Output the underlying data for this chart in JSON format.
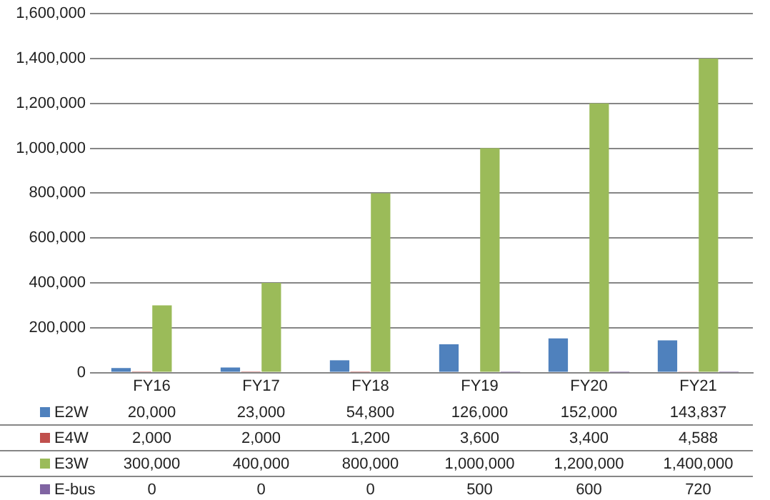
{
  "chart_data": {
    "type": "bar",
    "categories": [
      "FY16",
      "FY17",
      "FY18",
      "FY19",
      "FY20",
      "FY21"
    ],
    "series": [
      {
        "name": "E2W",
        "color": "#4f81bd",
        "values": [
          20000,
          23000,
          54800,
          126000,
          152000,
          143837
        ],
        "value_labels": [
          "20,000",
          "23,000",
          "54,800",
          "126,000",
          "152,000",
          "143,837"
        ]
      },
      {
        "name": "E4W",
        "color": "#c0504d",
        "values": [
          2000,
          2000,
          1200,
          3600,
          3400,
          4588
        ],
        "value_labels": [
          "2,000",
          "2,000",
          "1,200",
          "3,600",
          "3,400",
          "4,588"
        ]
      },
      {
        "name": "E3W",
        "color": "#9bbb59",
        "values": [
          300000,
          400000,
          800000,
          1000000,
          1200000,
          1400000
        ],
        "value_labels": [
          "300,000",
          "400,000",
          "800,000",
          "1,000,000",
          "1,200,000",
          "1,400,000"
        ]
      },
      {
        "name": "E-bus",
        "color": "#8064a2",
        "values": [
          0,
          0,
          0,
          500,
          600,
          720
        ],
        "value_labels": [
          "0",
          "0",
          "0",
          "500",
          "600",
          "720"
        ]
      }
    ],
    "ylim": [
      0,
      1600000
    ],
    "yticks": [
      0,
      {
        "value": 200000,
        "label": "200,000"
      },
      {
        "value": 400000,
        "label": "400,000"
      },
      {
        "value": 600000,
        "label": "600,000"
      },
      {
        "value": 800000,
        "label": "800,000"
      },
      {
        "value": 1000000,
        "label": "1,000,000"
      },
      {
        "value": 1200000,
        "label": "1,200,000"
      },
      {
        "value": 1400000,
        "label": "1,400,000"
      },
      {
        "value": 1600000,
        "label": "1,600,000"
      }
    ],
    "grid": "y",
    "legend": "bottom"
  }
}
